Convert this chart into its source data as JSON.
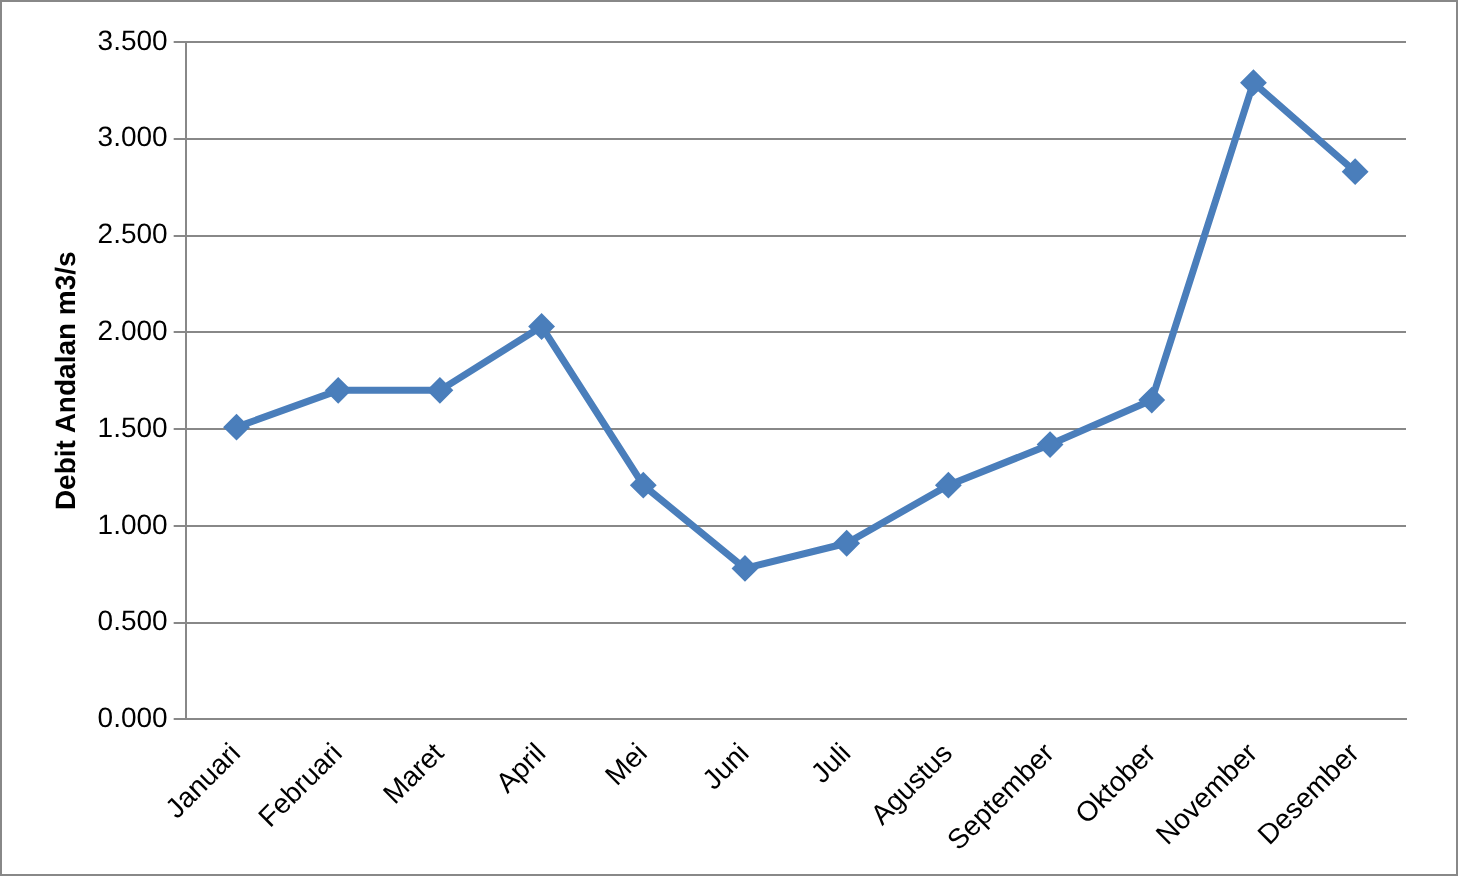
{
  "chart_data": {
    "type": "line",
    "ylabel": "Debit Andalan m3/s",
    "categories": [
      "Januari",
      "Februari",
      "Maret",
      "April",
      "Mei",
      "Juni",
      "Juli",
      "Agustus",
      "September",
      "Oktober",
      "November",
      "Desember"
    ],
    "series": [
      {
        "color": "#4a7ebb",
        "values": [
          1.51,
          1.7,
          1.7,
          2.03,
          1.21,
          0.78,
          0.91,
          1.21,
          1.42,
          1.65,
          3.29,
          2.83
        ]
      }
    ],
    "ylim": [
      0,
      3.5
    ],
    "yticks": [
      {
        "value": 0,
        "label": "0.000"
      },
      {
        "value": 0.5,
        "label": "0.500"
      },
      {
        "value": 1,
        "label": "1.000"
      },
      {
        "value": 1.5,
        "label": "1.500"
      },
      {
        "value": 2,
        "label": "2.000"
      },
      {
        "value": 2.5,
        "label": "2.500"
      },
      {
        "value": 3,
        "label": "3.000"
      },
      {
        "value": 3.5,
        "label": "3.500"
      }
    ],
    "grid": "y",
    "legend": false,
    "marker": "diamond",
    "line_style": "solid"
  }
}
